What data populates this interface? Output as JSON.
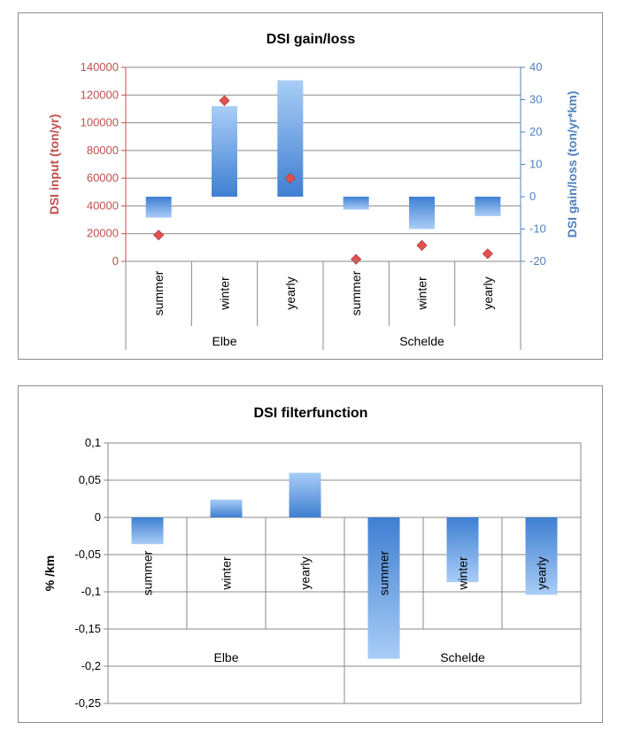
{
  "colors": {
    "bar_light": "#a9cdf6",
    "bar_dark": "#3f7fd2",
    "marker": "#e05151",
    "left_axis": "#c0504d",
    "right_axis": "#4f81bd",
    "grid": "#888888",
    "text": "#000000"
  },
  "chart_data": [
    {
      "type": "bar+scatter",
      "title": "DSI gain/loss",
      "ylabel_left": "DSI input (ton/yr)",
      "ylabel_right": "DSI gain/loss (ton/yr*km)",
      "ylim_left": [
        0,
        140000
      ],
      "ylim_right": [
        -20,
        40
      ],
      "yticks_left": [
        "0",
        "20000",
        "40000",
        "60000",
        "80000",
        "100000",
        "120000",
        "140000"
      ],
      "yticks_right": [
        "-20",
        "-10",
        "0",
        "10",
        "20",
        "30",
        "40"
      ],
      "categories": [
        "summer",
        "winter",
        "yearly",
        "summer",
        "winter",
        "yearly"
      ],
      "groups": [
        {
          "label": "Elbe",
          "count": 3
        },
        {
          "label": "Schelde",
          "count": 3
        }
      ],
      "series": [
        {
          "axis": "right",
          "type": "bar",
          "values": [
            -6.5,
            28,
            36,
            -4,
            -10,
            -6
          ]
        },
        {
          "axis": "left",
          "type": "scatter",
          "values": [
            19000,
            116000,
            60000,
            1500,
            11500,
            5500
          ]
        }
      ],
      "grid": true,
      "legend": "none"
    },
    {
      "type": "bar",
      "title": "DSI filterfunction",
      "ylabel": "% /km",
      "ylim": [
        -0.25,
        0.1
      ],
      "yticks": [
        "0,1",
        "0,05",
        "0",
        "-0,05",
        "-0,1",
        "-0,15",
        "-0,2",
        "-0,25"
      ],
      "categories": [
        "summer",
        "winter",
        "yearly",
        "summer",
        "winter",
        "yearly"
      ],
      "groups": [
        {
          "label": "Elbe",
          "count": 3
        },
        {
          "label": "Schelde",
          "count": 3
        }
      ],
      "series": [
        {
          "values": [
            -0.036,
            0.024,
            0.06,
            -0.19,
            -0.087,
            -0.104
          ]
        }
      ],
      "grid": true,
      "legend": "none"
    }
  ]
}
